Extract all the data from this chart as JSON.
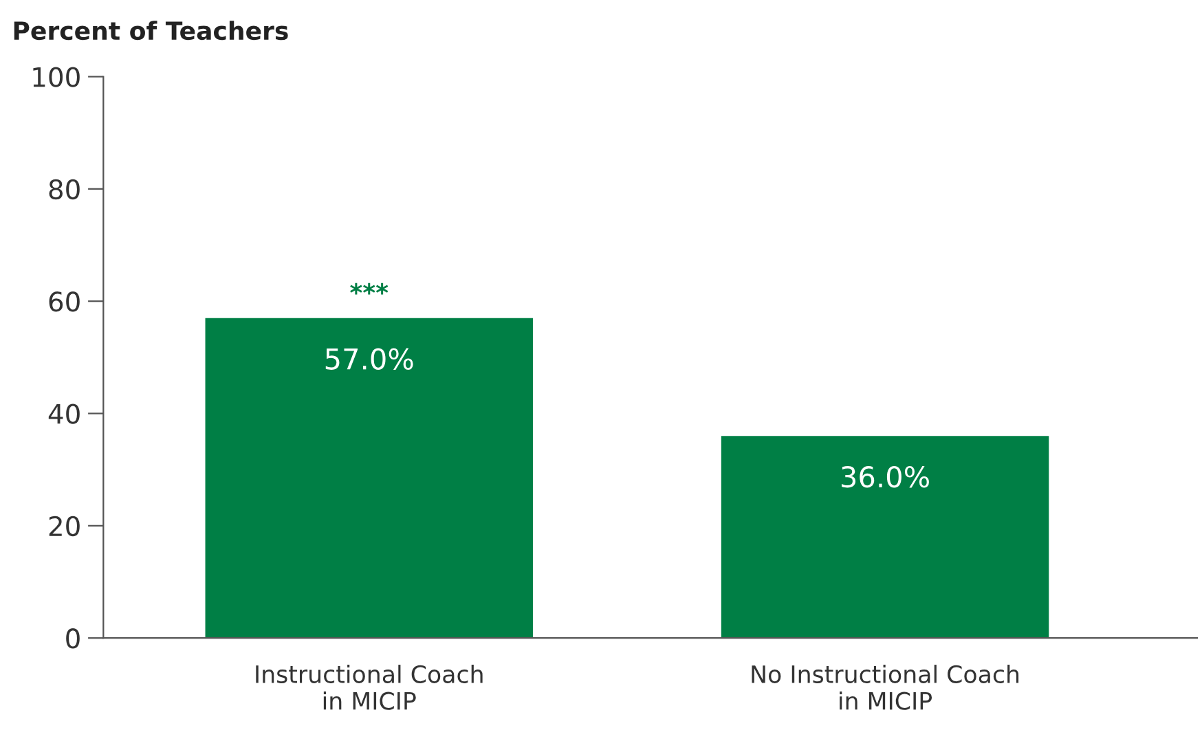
{
  "chart_data": {
    "type": "bar",
    "ylabel": "Percent of Teachers",
    "categories": [
      "Instructional Coach\nin MICIP",
      "No Instructional Coach\nin MICIP"
    ],
    "values": [
      57.0,
      36.0
    ],
    "value_labels": [
      "57.0%",
      "36.0%"
    ],
    "color": "#007f45",
    "ylim": [
      0,
      100
    ],
    "yticks": [
      0,
      20,
      40,
      60,
      80,
      100
    ],
    "grid": false,
    "annotations": [
      {
        "text": "***",
        "x": "Instructional Coach\nin MICIP",
        "y": 57.0
      }
    ]
  }
}
